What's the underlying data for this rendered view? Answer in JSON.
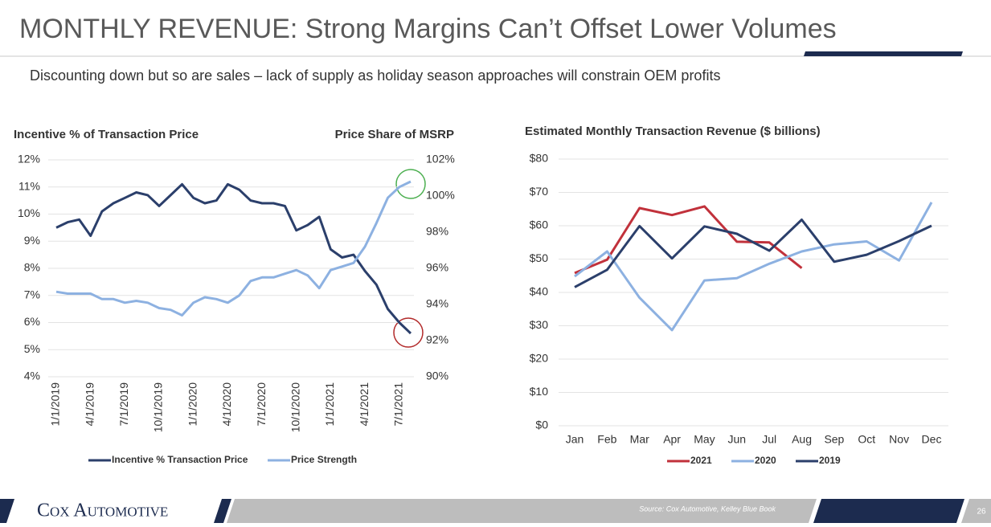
{
  "header": {
    "title": "MONTHLY REVENUE: Strong Margins Can’t Offset Lower Volumes",
    "subtitle": "Discounting down but so are sales – lack of supply as holiday season approaches will constrain OEM profits"
  },
  "footer": {
    "logo": "Cox Automotive",
    "source": "Source: Cox Automotive, Kelley Blue Book",
    "page": "26"
  },
  "chart_data": [
    {
      "type": "line",
      "y_label": "Incentive % of Transaction Price",
      "y2_label": "Price Share of MSRP",
      "categories": [
        "1/1/2019",
        null,
        null,
        "4/1/2019",
        null,
        null,
        "7/1/2019",
        null,
        null,
        "10/1/2019",
        null,
        null,
        "1/1/2020",
        null,
        null,
        "4/1/2020",
        null,
        null,
        "7/1/2020",
        null,
        null,
        "10/1/2020",
        null,
        null,
        "1/1/2021",
        null,
        null,
        "4/1/2021",
        null,
        null,
        "7/1/2021",
        null
      ],
      "series": [
        {
          "name": "Incentive % Transaction Price",
          "color": "#2b3f6b",
          "values": [
            9.5,
            9.7,
            9.8,
            9.2,
            10.1,
            10.4,
            10.6,
            10.8,
            10.7,
            10.3,
            10.7,
            11.1,
            10.6,
            10.4,
            10.5,
            11.1,
            10.9,
            10.5,
            10.4,
            10.4,
            10.3,
            9.4,
            9.6,
            9.9,
            8.7,
            8.4,
            8.5,
            7.9,
            7.4,
            6.5,
            6.0,
            5.6
          ]
        },
        {
          "name": "Price Strength",
          "color": "#8db1e1",
          "axis": "y2",
          "values": [
            94.7,
            94.6,
            94.6,
            94.6,
            94.3,
            94.3,
            94.1,
            94.2,
            94.1,
            93.8,
            93.7,
            93.4,
            94.1,
            94.4,
            94.3,
            94.1,
            94.5,
            95.3,
            95.5,
            95.5,
            95.7,
            95.9,
            95.6,
            94.9,
            95.9,
            96.1,
            96.3,
            97.2,
            98.5,
            99.9,
            100.5,
            100.8
          ]
        }
      ],
      "ylim": [
        4,
        12
      ],
      "yticks": [
        {
          "value": 4,
          "label": "4%"
        },
        {
          "value": 5,
          "label": "5%"
        },
        {
          "value": 6,
          "label": "6%"
        },
        {
          "value": 7,
          "label": "7%"
        },
        {
          "value": 8,
          "label": "8%"
        },
        {
          "value": 9,
          "label": "9%"
        },
        {
          "value": 10,
          "label": "10%"
        },
        {
          "value": 11,
          "label": "11%"
        },
        {
          "value": 12,
          "label": "12%"
        }
      ],
      "y2lim": [
        90,
        102
      ],
      "y2ticks": [
        {
          "value": 90,
          "label": "90%"
        },
        {
          "value": 92,
          "label": "92%"
        },
        {
          "value": 94,
          "label": "94%"
        },
        {
          "value": 96,
          "label": "96%"
        },
        {
          "value": 98,
          "label": "98%"
        },
        {
          "value": 100,
          "label": "100%"
        },
        {
          "value": 102,
          "label": "102%"
        }
      ],
      "grid": true,
      "legend": "bottom"
    },
    {
      "type": "line",
      "title": "Estimated Monthly Transaction Revenue ($ billions)",
      "categories": [
        "Jan",
        "Feb",
        "Mar",
        "Apr",
        "May",
        "Jun",
        "Jul",
        "Aug",
        "Sep",
        "Oct",
        "Nov",
        "Dec"
      ],
      "series": [
        {
          "name": "2021",
          "color": "#c1313b",
          "values": [
            45.8,
            49.8,
            65.3,
            63.2,
            65.8,
            55.2,
            55.0,
            47.3,
            null,
            null,
            null,
            null
          ]
        },
        {
          "name": "2020",
          "color": "#8db1e1",
          "values": [
            44.8,
            52.3,
            38.4,
            28.7,
            43.6,
            44.3,
            48.6,
            52.3,
            54.4,
            55.3,
            49.6,
            67.0
          ]
        },
        {
          "name": "2019",
          "color": "#2b3f6b",
          "values": [
            41.6,
            46.8,
            59.9,
            50.2,
            59.8,
            57.6,
            52.5,
            61.8,
            49.2,
            51.3,
            55.4,
            60.0
          ]
        }
      ],
      "ylim": [
        0,
        80
      ],
      "yticks": [
        {
          "value": 0,
          "label": "$0"
        },
        {
          "value": 10,
          "label": "$10"
        },
        {
          "value": 20,
          "label": "$20"
        },
        {
          "value": 30,
          "label": "$30"
        },
        {
          "value": 40,
          "label": "$40"
        },
        {
          "value": 50,
          "label": "$50"
        },
        {
          "value": 60,
          "label": "$60"
        },
        {
          "value": 70,
          "label": "$70"
        },
        {
          "value": 80,
          "label": "$80"
        }
      ],
      "grid": true,
      "legend": "bottom"
    }
  ]
}
